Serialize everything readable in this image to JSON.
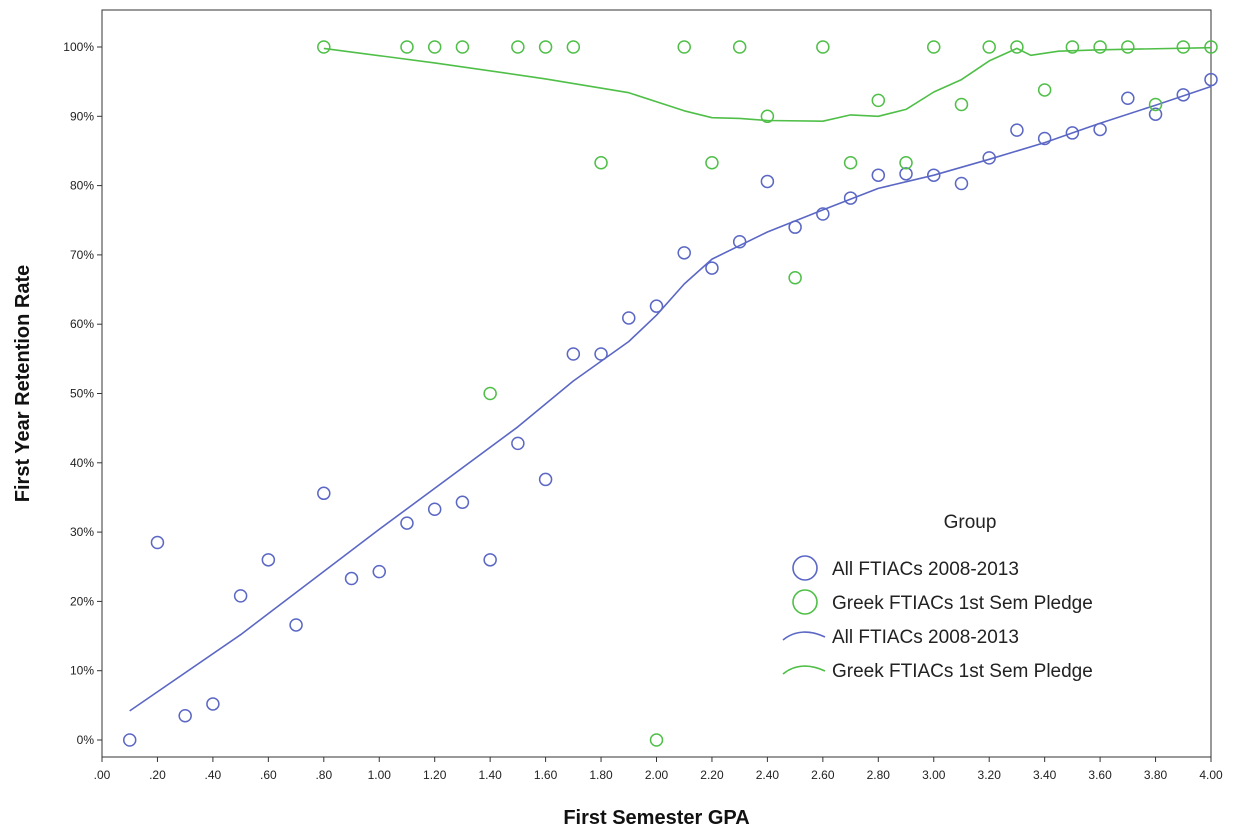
{
  "chart_data": {
    "type": "scatter",
    "xlabel": "First Semester GPA",
    "ylabel": "First Year Retention Rate",
    "xlim": [
      0,
      4
    ],
    "ylim": [
      0,
      100
    ],
    "x_ticks": [
      ".00",
      ".20",
      ".40",
      ".60",
      ".80",
      "1.00",
      "1.20",
      "1.40",
      "1.60",
      "1.80",
      "2.00",
      "2.20",
      "2.40",
      "2.60",
      "2.80",
      "3.00",
      "3.20",
      "3.40",
      "3.60",
      "3.80",
      "4.00"
    ],
    "y_ticks": [
      "0%",
      "10%",
      "20%",
      "30%",
      "40%",
      "50%",
      "60%",
      "70%",
      "80%",
      "90%",
      "100%"
    ],
    "legend": {
      "title": "Group",
      "position": "lower-right",
      "entries": [
        {
          "label": "All FTIACs 2008-2013",
          "kind": "marker",
          "series": 0
        },
        {
          "label": "Greek FTIACs 1st Sem Pledge",
          "kind": "marker",
          "series": 1
        },
        {
          "label": "All FTIACs 2008-2013",
          "kind": "line",
          "series": 0
        },
        {
          "label": "Greek FTIACs 1st Sem Pledge",
          "kind": "line",
          "series": 1
        }
      ]
    },
    "series": [
      {
        "name": "All FTIACs 2008-2013",
        "color": "#5b67c4",
        "points": [
          [
            0.1,
            0
          ],
          [
            0.2,
            28.5
          ],
          [
            0.3,
            3.5
          ],
          [
            0.4,
            5.2
          ],
          [
            0.5,
            20.8
          ],
          [
            0.6,
            26
          ],
          [
            0.7,
            16.6
          ],
          [
            0.8,
            35.6
          ],
          [
            0.9,
            23.3
          ],
          [
            1.0,
            24.3
          ],
          [
            1.1,
            31.3
          ],
          [
            1.2,
            33.3
          ],
          [
            1.3,
            34.3
          ],
          [
            1.4,
            26
          ],
          [
            1.5,
            42.8
          ],
          [
            1.6,
            37.6
          ],
          [
            1.7,
            55.7
          ],
          [
            1.8,
            55.7
          ],
          [
            1.9,
            60.9
          ],
          [
            2.0,
            62.6
          ],
          [
            2.1,
            70.3
          ],
          [
            2.2,
            68.1
          ],
          [
            2.3,
            71.9
          ],
          [
            2.4,
            80.6
          ],
          [
            2.5,
            74
          ],
          [
            2.6,
            75.9
          ],
          [
            2.7,
            78.2
          ],
          [
            2.8,
            81.5
          ],
          [
            2.9,
            81.7
          ],
          [
            3.0,
            81.5
          ],
          [
            3.1,
            80.3
          ],
          [
            3.2,
            84
          ],
          [
            3.3,
            88
          ],
          [
            3.4,
            86.8
          ],
          [
            3.5,
            87.6
          ],
          [
            3.6,
            88.1
          ],
          [
            3.7,
            92.6
          ],
          [
            3.8,
            90.3
          ],
          [
            3.9,
            93.1
          ],
          [
            4.0,
            95.3
          ]
        ],
        "fit": [
          [
            0.1,
            4.2
          ],
          [
            0.5,
            15.2
          ],
          [
            1.0,
            30.4
          ],
          [
            1.5,
            45.2
          ],
          [
            1.7,
            51.8
          ],
          [
            1.9,
            57.5
          ],
          [
            2.0,
            61.3
          ],
          [
            2.1,
            65.8
          ],
          [
            2.2,
            69.4
          ],
          [
            2.4,
            73.3
          ],
          [
            2.6,
            76.5
          ],
          [
            2.8,
            79.6
          ],
          [
            3.0,
            81.5
          ],
          [
            3.2,
            83.8
          ],
          [
            3.4,
            86.2
          ],
          [
            3.6,
            89.0
          ],
          [
            3.8,
            91.6
          ],
          [
            4.0,
            94.3
          ]
        ]
      },
      {
        "name": "Greek FTIACs 1st Sem Pledge",
        "color": "#4fbf48",
        "points": [
          [
            0.8,
            100
          ],
          [
            1.1,
            100
          ],
          [
            1.2,
            100
          ],
          [
            1.3,
            100
          ],
          [
            1.4,
            50
          ],
          [
            1.5,
            100
          ],
          [
            1.6,
            100
          ],
          [
            1.7,
            100
          ],
          [
            1.8,
            83.3
          ],
          [
            2.0,
            0
          ],
          [
            2.1,
            100
          ],
          [
            2.2,
            83.3
          ],
          [
            2.3,
            100
          ],
          [
            2.4,
            90
          ],
          [
            2.5,
            66.7
          ],
          [
            2.6,
            100
          ],
          [
            2.7,
            83.3
          ],
          [
            2.8,
            92.3
          ],
          [
            2.9,
            83.3
          ],
          [
            3.0,
            100
          ],
          [
            3.1,
            91.7
          ],
          [
            3.2,
            100
          ],
          [
            3.3,
            100
          ],
          [
            3.4,
            93.8
          ],
          [
            3.5,
            100
          ],
          [
            3.6,
            100
          ],
          [
            3.7,
            100
          ],
          [
            3.8,
            91.7
          ],
          [
            3.9,
            100
          ],
          [
            4.0,
            100
          ]
        ],
        "fit": [
          [
            0.8,
            99.8
          ],
          [
            1.2,
            97.7
          ],
          [
            1.6,
            95.4
          ],
          [
            1.9,
            93.4
          ],
          [
            2.1,
            90.8
          ],
          [
            2.2,
            89.8
          ],
          [
            2.3,
            89.7
          ],
          [
            2.4,
            89.4
          ],
          [
            2.6,
            89.3
          ],
          [
            2.7,
            90.2
          ],
          [
            2.8,
            90.0
          ],
          [
            2.9,
            91.0
          ],
          [
            3.0,
            93.5
          ],
          [
            3.1,
            95.3
          ],
          [
            3.2,
            98.0
          ],
          [
            3.3,
            99.8
          ],
          [
            3.35,
            98.8
          ],
          [
            3.45,
            99.4
          ],
          [
            3.6,
            99.6
          ],
          [
            4.0,
            99.9
          ]
        ]
      }
    ]
  }
}
